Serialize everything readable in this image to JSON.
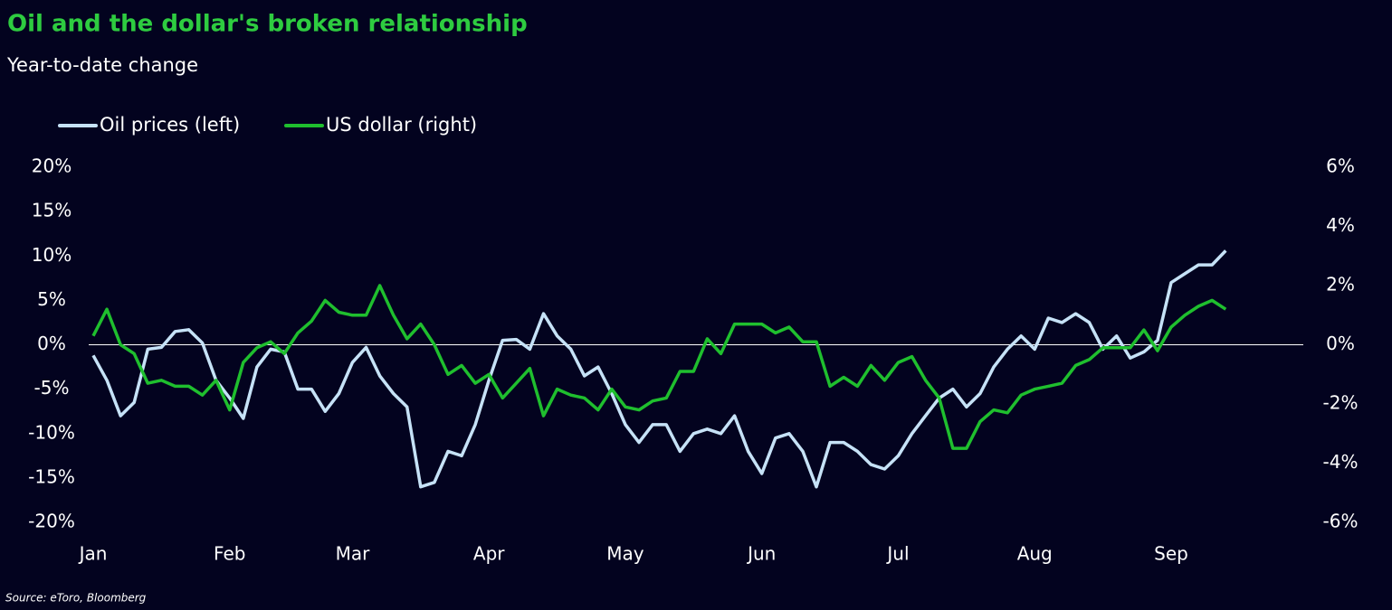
{
  "chart_data": {
    "type": "line",
    "title": "Oil and the dollar's broken relationship",
    "subtitle": "Year-to-date change",
    "source": "Source: eToro, Bloomberg",
    "categories": [
      "Jan",
      null,
      null,
      null,
      null,
      null,
      null,
      null,
      null,
      null,
      "Feb",
      null,
      null,
      null,
      null,
      null,
      null,
      null,
      null,
      "Mar",
      null,
      null,
      null,
      null,
      null,
      null,
      null,
      null,
      null,
      "Apr",
      null,
      null,
      null,
      null,
      null,
      null,
      null,
      null,
      null,
      "May",
      null,
      null,
      null,
      null,
      null,
      null,
      null,
      null,
      null,
      "Jun",
      null,
      null,
      null,
      null,
      null,
      null,
      null,
      null,
      null,
      "Jul",
      null,
      null,
      null,
      null,
      null,
      null,
      null,
      null,
      null,
      "Aug",
      null,
      null,
      null,
      null,
      null,
      null,
      null,
      null,
      null,
      "Sep",
      null,
      null,
      null,
      null
    ],
    "series": [
      {
        "name": "Oil prices (left)",
        "color": "#c6e2f7",
        "axis": "y",
        "values": [
          -1.2,
          -4,
          -8,
          -6.5,
          -0.5,
          -0.3,
          1.5,
          1.7,
          0.2,
          -4,
          -6,
          -8.3,
          -2.5,
          -0.5,
          -0.8,
          -5,
          -5,
          -7.5,
          -5.5,
          -2,
          -0.3,
          -3.5,
          -5.5,
          -7,
          -16,
          -15.5,
          -12,
          -12.5,
          -9,
          -4,
          0.5,
          0.6,
          -0.5,
          3.5,
          1,
          -0.5,
          -3.5,
          -2.5,
          -5.5,
          -9,
          -11,
          -9,
          -9,
          -12,
          -10,
          -9.5,
          -10,
          -8,
          -12,
          -14.5,
          -10.5,
          -10,
          -12,
          -16,
          -11,
          -11,
          -12,
          -13.5,
          -14,
          -12.5,
          -10,
          -8,
          -6,
          -5,
          -7,
          -5.5,
          -2.5,
          -0.5,
          1,
          -0.5,
          3,
          2.5,
          3.5,
          2.5,
          -0.5,
          1,
          -1.5,
          -0.8,
          0.5,
          7,
          8,
          9,
          9,
          10.6
        ]
      },
      {
        "name": "US dollar (right)",
        "color": "#1fbf2e",
        "axis": "y2",
        "values": [
          0.3,
          1.2,
          0,
          -0.3,
          -1.3,
          -1.2,
          -1.4,
          -1.4,
          -1.7,
          -1.2,
          -2.2,
          -0.6,
          -0.1,
          0.1,
          -0.3,
          0.4,
          0.8,
          1.5,
          1.1,
          1,
          1,
          2,
          1,
          0.2,
          0.7,
          0,
          -1,
          -0.7,
          -1.3,
          -1,
          -1.8,
          -1.3,
          -0.8,
          -2.4,
          -1.5,
          -1.7,
          -1.8,
          -2.2,
          -1.5,
          -2.1,
          -2.2,
          -1.9,
          -1.8,
          -0.9,
          -0.9,
          0.2,
          -0.3,
          0.7,
          0.7,
          0.7,
          0.4,
          0.6,
          0.1,
          0.1,
          -1.4,
          -1.1,
          -1.4,
          -0.7,
          -1.2,
          -0.6,
          -0.4,
          -1.2,
          -1.8,
          -3.5,
          -3.5,
          -2.6,
          -2.2,
          -2.3,
          -1.7,
          -1.5,
          -1.4,
          -1.3,
          -0.7,
          -0.5,
          -0.1,
          -0.1,
          -0.1,
          0.5,
          -0.2,
          0.6,
          1,
          1.3,
          1.5,
          1.2
        ]
      }
    ],
    "ylim": [
      -20,
      20
    ],
    "yticks": [
      {
        "value": -20,
        "label": "-20%"
      },
      {
        "value": -15,
        "label": "-15%"
      },
      {
        "value": -10,
        "label": "-10%"
      },
      {
        "value": -5,
        "label": "-5%"
      },
      {
        "value": 0,
        "label": "0%"
      },
      {
        "value": 5,
        "label": "5%"
      },
      {
        "value": 10,
        "label": "10%"
      },
      {
        "value": 15,
        "label": "15%"
      },
      {
        "value": 20,
        "label": "20%"
      }
    ],
    "y2lim": [
      -6,
      6
    ],
    "y2ticks": [
      {
        "value": -6,
        "label": "-6%"
      },
      {
        "value": -4,
        "label": "-4%"
      },
      {
        "value": -2,
        "label": "-2%"
      },
      {
        "value": 0,
        "label": "0%"
      },
      {
        "value": 2,
        "label": "2%"
      },
      {
        "value": 4,
        "label": "4%"
      },
      {
        "value": 6,
        "label": "6%"
      }
    ],
    "legend": "top-left"
  }
}
